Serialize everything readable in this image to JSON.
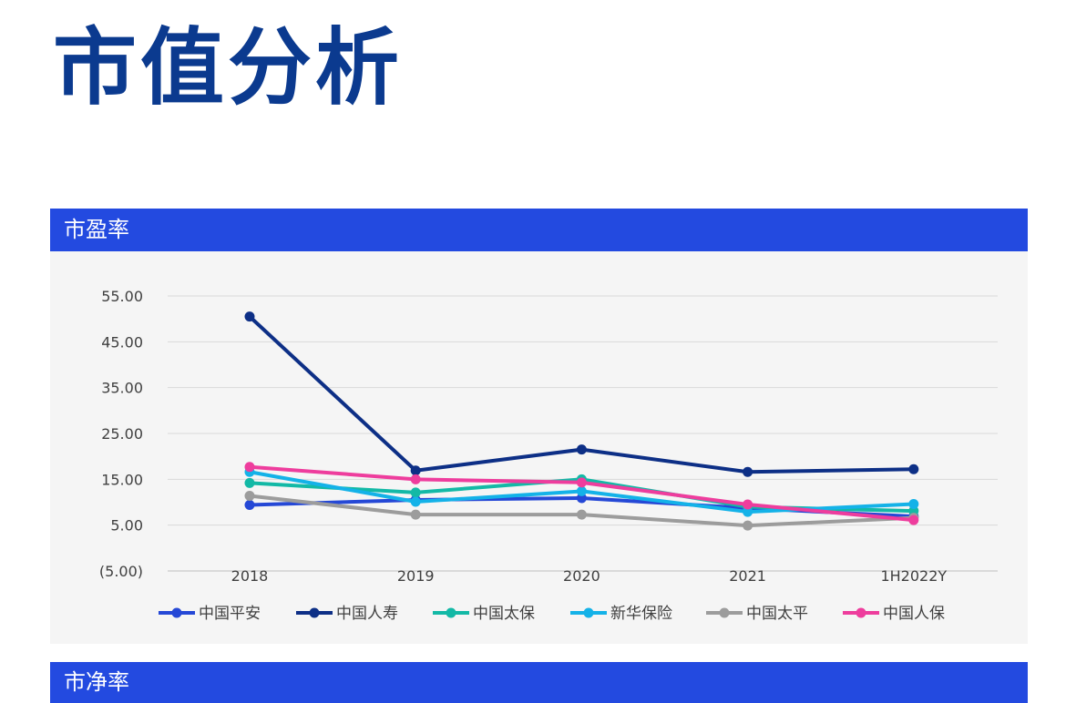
{
  "page": {
    "title": "市值分析"
  },
  "sections": {
    "pe_label": "市盈率",
    "pb_label": "市净率"
  },
  "chart_data": {
    "type": "line",
    "title": "",
    "xlabel": "",
    "ylabel": "",
    "categories": [
      "2018",
      "2019",
      "2020",
      "2021",
      "1H2022Y"
    ],
    "y_ticks": [
      55,
      45,
      35,
      25,
      15,
      5,
      -5
    ],
    "y_tick_labels": [
      "55.00",
      "45.00",
      "35.00",
      "25.00",
      "15.00",
      "5.00",
      "(5.00)"
    ],
    "ylim": [
      -5,
      55
    ],
    "grid": true,
    "legend_position": "bottom",
    "series": [
      {
        "name": "中国平安",
        "color": "#2548d6",
        "values": [
          9.4,
          10.5,
          10.9,
          8.7,
          6.9
        ]
      },
      {
        "name": "中国人寿",
        "color": "#0d2f86",
        "values": [
          50.5,
          16.9,
          21.5,
          16.6,
          17.2
        ]
      },
      {
        "name": "中国太保",
        "color": "#13b9a6",
        "values": [
          14.2,
          12.1,
          15.0,
          9.0,
          8.1
        ]
      },
      {
        "name": "新华保险",
        "color": "#14b2e8",
        "values": [
          16.6,
          10.1,
          12.4,
          7.9,
          9.6
        ]
      },
      {
        "name": "中国太平",
        "color": "#9c9c9c",
        "values": [
          11.4,
          7.3,
          7.3,
          4.9,
          6.6
        ]
      },
      {
        "name": "中国人保",
        "color": "#ee3d9d",
        "values": [
          17.7,
          15.0,
          14.3,
          9.5,
          6.1
        ]
      }
    ]
  }
}
